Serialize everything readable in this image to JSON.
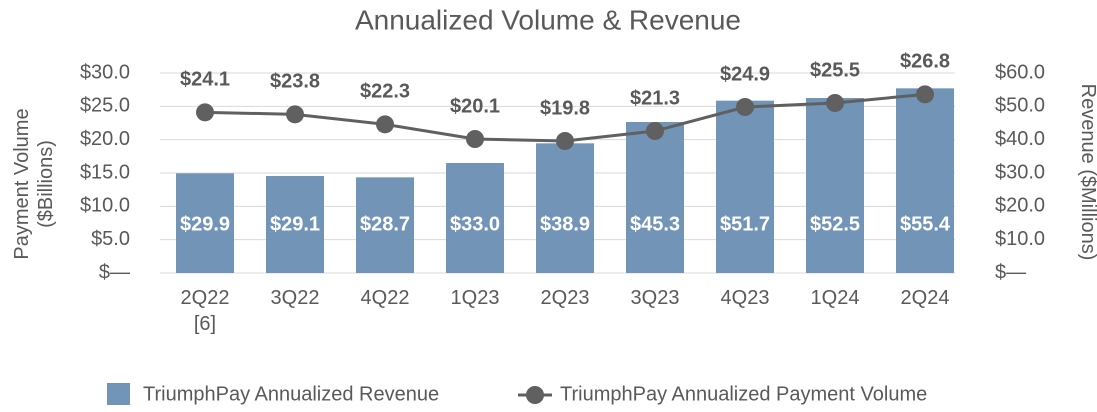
{
  "chart_data": {
    "type": "bar-line",
    "title": "Annualized Volume & Revenue",
    "y_label": "Payment Volume ($Billions)",
    "y2_label": "Revenue ($Millions)",
    "categories": [
      "2Q22\n[6]",
      "3Q22",
      "4Q22",
      "1Q23",
      "2Q23",
      "3Q23",
      "4Q23",
      "1Q24",
      "2Q24"
    ],
    "series": [
      {
        "name": "TriumphPay Annualized Revenue",
        "type": "bar",
        "axis": "y2",
        "color": "#7294b6",
        "values": [
          29.9,
          29.1,
          28.7,
          33.0,
          38.9,
          45.3,
          51.7,
          52.5,
          55.4
        ],
        "value_labels": [
          "$29.9",
          "$29.1",
          "$28.7",
          "$33.0",
          "$38.9",
          "$45.3",
          "$51.7",
          "$52.5",
          "$55.4"
        ]
      },
      {
        "name": "TriumphPay Annualized Payment Volume",
        "type": "line",
        "axis": "y",
        "color": "#606060",
        "values": [
          24.1,
          23.8,
          22.3,
          20.1,
          19.8,
          21.3,
          24.9,
          25.5,
          26.8
        ],
        "value_labels": [
          "$24.1",
          "$23.8",
          "$22.3",
          "$20.1",
          "$19.8",
          "$21.3",
          "$24.9",
          "$25.5",
          "$26.8"
        ]
      }
    ],
    "ylim": [
      0,
      30
    ],
    "yticks": [
      {
        "value": 0,
        "label": "$—"
      },
      {
        "value": 5,
        "label": "$5.0"
      },
      {
        "value": 10,
        "label": "$10.0"
      },
      {
        "value": 15,
        "label": "$15.0"
      },
      {
        "value": 20,
        "label": "$20.0"
      },
      {
        "value": 25,
        "label": "$25.0"
      },
      {
        "value": 30,
        "label": "$30.0"
      }
    ],
    "y2lim": [
      0,
      60
    ],
    "y2ticks": [
      {
        "value": 0,
        "label": "$—"
      },
      {
        "value": 10,
        "label": "$10.0"
      },
      {
        "value": 20,
        "label": "$20.0"
      },
      {
        "value": 30,
        "label": "$30.0"
      },
      {
        "value": 40,
        "label": "$40.0"
      },
      {
        "value": 50,
        "label": "$50.0"
      },
      {
        "value": 60,
        "label": "$60.0"
      }
    ],
    "grid": true
  }
}
